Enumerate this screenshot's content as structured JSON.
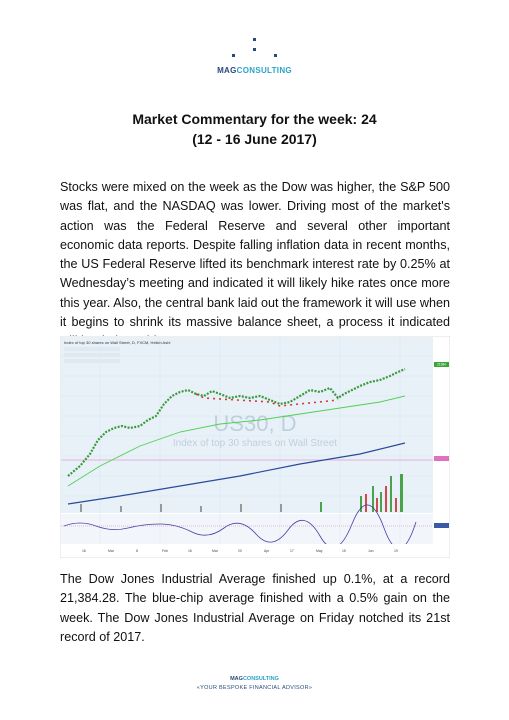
{
  "logo": {
    "brand_part1": "MAG",
    "brand_part2": "CONSULTING"
  },
  "title": {
    "line1": "Market Commentary for the week: 24",
    "line2": "(12 - 16 June 2017)"
  },
  "paragraph1": "Stocks were mixed on the week as the Dow was higher, the S&P 500 was flat, and the NASDAQ was lower. Driving most of the market's action was the Federal Reserve and several other important economic data reports. Despite falling inflation data in recent months, the US Federal Reserve lifted its benchmark interest rate by 0.25% at Wednesday’s meeting and indicated it will likely hike rates once more this year. Also, the central bank laid out the framework it will use when it begins to shrink its massive balance sheet, a process it indicated will begin later this year.",
  "chart": {
    "header": "Index of top 30 shares on Wall Street, D, FXCM, Heikin Ashi",
    "watermark_symbol": "US30, D",
    "watermark_desc": "Index of top 30 shares on Wall Street",
    "x_ticks": [
      "16",
      "Mar",
      "8",
      "Feb",
      "16",
      "Mar",
      "20",
      "Apr",
      "17",
      "May",
      "15",
      "Jun",
      "19"
    ],
    "last_price_label": "21384"
  },
  "paragraph2": " The Dow Jones Industrial Average finished up 0.1%, at a record 21,384.28. The blue-chip average finished with a 0.5% gain on the week. The Dow Jones Industrial Average on Friday notched its 21st record of 2017.",
  "footer": {
    "brand_part1": "MAG",
    "brand_part2": "CONSULTING",
    "tagline": "«YOUR BESPOKE FINANCIAL ADVISOR»"
  },
  "colors": {
    "brand_dark": "#2a4a7a",
    "brand_light": "#2aa4c8",
    "chart_bg": "#e8f1f8",
    "up": "#3a9a3a",
    "down": "#d03a3a"
  }
}
